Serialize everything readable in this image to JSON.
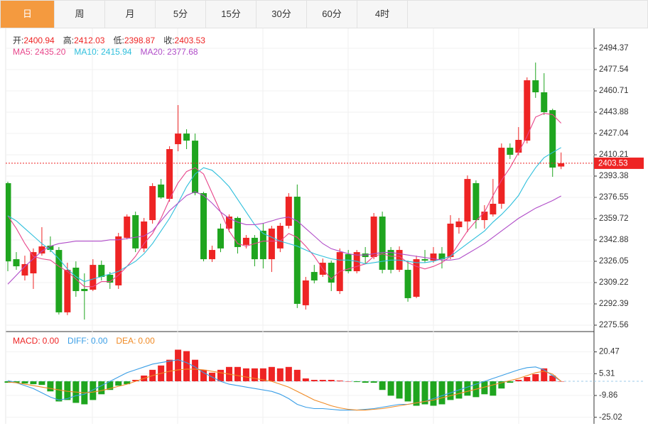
{
  "tabs": [
    "日",
    "周",
    "月",
    "5分",
    "15分",
    "30分",
    "60分",
    "4时"
  ],
  "chart_data": [
    {
      "type": "candlestick",
      "legend": [
        {
          "label": "开:",
          "value": "2400.94"
        },
        {
          "label": "高:",
          "value": "2412.03"
        },
        {
          "label": "低:",
          "value": "2398.87"
        },
        {
          "label": "收:",
          "value": "2403.53"
        }
      ],
      "up_color": "#ee2424",
      "down_color": "#1fa51f",
      "open": [
        2387.8,
        2327.7,
        2314.8,
        2316.5,
        2332.2,
        2338.4,
        2335.0,
        2285.7,
        2321.0,
        2304.2,
        2303.6,
        2323.2,
        2315.4,
        2307.0,
        2344.6,
        2362.5,
        2336.2,
        2358.6,
        2386.7,
        2375.4,
        2418.6,
        2427.0,
        2421.4,
        2379.9,
        2327.7,
        2351.9,
        2351.9,
        2360.3,
        2339.0,
        2344.6,
        2350.2,
        2327.7,
        2336.2,
        2354.1,
        2377.1,
        2291.3,
        2317.6,
        2315.4,
        2324.9,
        2302.5,
        2331.7,
        2318.2,
        2332.2,
        2329.4,
        2361.4,
        2335.0,
        2319.3,
        2319.3,
        2298.0,
        2327.7,
        2326.6,
        2332.2,
        2329.4,
        2353.0,
        2357.5,
        2387.8,
        2358.6,
        2363.1,
        2371.5,
        2415.8,
        2411.9,
        2421.4,
        2469.1,
        2459.6,
        2445.5,
        2400.94
      ],
      "close": [
        2326.0,
        2322.1,
        2323.8,
        2333.3,
        2337.8,
        2335.0,
        2285.7,
        2319.3,
        2302.5,
        2302.5,
        2323.2,
        2313.7,
        2309.2,
        2345.7,
        2361.4,
        2336.2,
        2357.5,
        2385.5,
        2376.5,
        2414.7,
        2427.0,
        2421.4,
        2379.9,
        2327.7,
        2335.0,
        2336.2,
        2361.4,
        2337.3,
        2344.6,
        2327.7,
        2327.7,
        2351.9,
        2354.1,
        2377.1,
        2292.4,
        2310.9,
        2310.9,
        2324.9,
        2309.2,
        2333.3,
        2318.2,
        2333.3,
        2329.4,
        2361.4,
        2319.3,
        2319.3,
        2335.0,
        2296.9,
        2327.7,
        2326.6,
        2332.2,
        2327.7,
        2355.8,
        2357.5,
        2391.1,
        2358.6,
        2365.3,
        2371.5,
        2415.8,
        2410.2,
        2422.0,
        2469.1,
        2459.6,
        2443.9,
        2400.1,
        2403.53
      ],
      "high": [
        2389.0,
        2333.3,
        2330.5,
        2336.2,
        2353.0,
        2345.7,
        2337.3,
        2324.9,
        2326.0,
        2316.5,
        2327.7,
        2326.6,
        2317.6,
        2348.5,
        2363.1,
        2365.3,
        2360.3,
        2387.8,
        2391.1,
        2417.0,
        2449.5,
        2430.4,
        2427.0,
        2381.0,
        2338.4,
        2355.8,
        2363.1,
        2361.4,
        2346.8,
        2346.8,
        2355.8,
        2354.1,
        2356.4,
        2379.9,
        2386.7,
        2313.7,
        2323.2,
        2328.2,
        2326.6,
        2336.2,
        2335.0,
        2335.0,
        2337.3,
        2364.2,
        2365.3,
        2337.3,
        2337.8,
        2326.6,
        2330.5,
        2335.0,
        2337.3,
        2337.3,
        2362.5,
        2360.3,
        2393.9,
        2390.0,
        2370.4,
        2391.1,
        2419.2,
        2419.2,
        2432.1,
        2471.4,
        2483.1,
        2474.7,
        2446.6,
        2412.03
      ],
      "low": [
        2318.2,
        2319.3,
        2310.9,
        2304.2,
        2330.5,
        2333.3,
        2284.0,
        2283.5,
        2298.0,
        2280.0,
        2302.5,
        2310.9,
        2304.2,
        2304.2,
        2343.4,
        2333.3,
        2333.3,
        2355.8,
        2375.4,
        2373.2,
        2413.0,
        2414.7,
        2378.2,
        2326.0,
        2325.5,
        2333.3,
        2349.1,
        2332.2,
        2336.2,
        2322.1,
        2320.4,
        2317.6,
        2333.3,
        2351.9,
        2289.1,
        2287.9,
        2308.6,
        2313.7,
        2302.5,
        2300.2,
        2316.5,
        2316.5,
        2323.8,
        2327.7,
        2316.5,
        2316.5,
        2317.6,
        2294.1,
        2296.9,
        2324.9,
        2324.9,
        2320.4,
        2327.7,
        2347.9,
        2349.1,
        2351.9,
        2351.9,
        2361.4,
        2367.6,
        2406.9,
        2409.7,
        2419.2,
        2455.2,
        2441.7,
        2392.8,
        2398.87
      ],
      "series": [
        {
          "name": "MA5:",
          "value_label": "2435.20",
          "color": "#e8468b",
          "values": [
            2362,
            2352,
            2340,
            2330,
            2328,
            2327,
            2322,
            2318,
            2312,
            2306,
            2306,
            2310,
            2310,
            2315,
            2322,
            2330,
            2340,
            2348,
            2360,
            2375,
            2388,
            2397,
            2400,
            2395,
            2380,
            2365,
            2350,
            2340,
            2338,
            2340,
            2342,
            2342,
            2342,
            2348,
            2345,
            2338,
            2330,
            2320,
            2312,
            2318,
            2320,
            2322,
            2324,
            2330,
            2332,
            2330,
            2330,
            2325,
            2322,
            2320,
            2322,
            2325,
            2330,
            2340,
            2350,
            2358,
            2365,
            2378,
            2390,
            2400,
            2412,
            2425,
            2440,
            2443,
            2442,
            2435.2
          ]
        },
        {
          "name": "MA10:",
          "value_label": "2415.94",
          "color": "#2ebfdc",
          "values": [
            2362,
            2358,
            2352,
            2346,
            2340,
            2335,
            2328,
            2320,
            2314,
            2310,
            2312,
            2314,
            2316,
            2318,
            2322,
            2326,
            2332,
            2340,
            2350,
            2360,
            2372,
            2385,
            2395,
            2400,
            2398,
            2392,
            2385,
            2375,
            2365,
            2355,
            2348,
            2345,
            2342,
            2340,
            2338,
            2335,
            2332,
            2330,
            2328,
            2327,
            2327,
            2326,
            2324,
            2325,
            2326,
            2327,
            2327,
            2326,
            2325,
            2325,
            2326,
            2328,
            2330,
            2335,
            2340,
            2345,
            2350,
            2357,
            2363,
            2370,
            2378,
            2390,
            2400,
            2408,
            2412,
            2415.94
          ]
        },
        {
          "name": "MA20:",
          "value_label": "2377.68",
          "color": "#b04cc8",
          "values": [
            2308,
            2315,
            2322,
            2328,
            2334,
            2338,
            2340,
            2341,
            2342,
            2342,
            2342,
            2342,
            2343,
            2343,
            2344,
            2345,
            2346,
            2350,
            2358,
            2366,
            2372,
            2378,
            2381,
            2378,
            2372,
            2365,
            2360,
            2357,
            2355,
            2355,
            2356,
            2358,
            2360,
            2361,
            2358,
            2352,
            2346,
            2340,
            2336,
            2334,
            2332,
            2331,
            2331,
            2332,
            2333,
            2333,
            2332,
            2331,
            2330,
            2329,
            2328,
            2327,
            2327,
            2328,
            2332,
            2336,
            2340,
            2345,
            2350,
            2355,
            2360,
            2364,
            2368,
            2371,
            2374,
            2377.68
          ]
        }
      ],
      "last_price": 2403.53,
      "ylim": [
        2270.5,
        2510.1
      ],
      "yticks": [
        2494.37,
        2477.54,
        2460.71,
        2443.88,
        2427.04,
        2410.21,
        2393.38,
        2376.55,
        2359.72,
        2342.88,
        2326.05,
        2309.22,
        2292.39,
        2275.56
      ]
    },
    {
      "type": "macd",
      "series": [
        {
          "name": "MACD:",
          "value_label": "0.00",
          "color": "#ee2424",
          "negative_color": "#1fa51f",
          "values": [
            -1,
            -1,
            -1.5,
            -2,
            -2.5,
            -7,
            -14,
            -13,
            -15,
            -16,
            -13,
            -9,
            -6,
            -3,
            -2,
            1,
            4,
            8,
            11,
            15,
            22,
            21,
            15,
            8,
            6,
            8,
            10,
            10,
            9,
            9,
            9,
            10,
            9,
            10,
            8,
            2,
            1,
            1,
            1,
            0.5,
            0,
            -0.5,
            -1,
            -1,
            -6,
            -10,
            -12,
            -14,
            -17,
            -16,
            -17,
            -16,
            -13,
            -12,
            -10,
            -11,
            -9,
            -10,
            -5,
            -1,
            1,
            3,
            5,
            9,
            4,
            0
          ]
        },
        {
          "name": "DIFF:",
          "value_label": "0.00",
          "color": "#3a9ee6",
          "values": [
            0.5,
            -1,
            -3,
            -5,
            -8,
            -11,
            -13,
            -12,
            -10,
            -9,
            -6,
            -3,
            0,
            3,
            6,
            8,
            10,
            12,
            13,
            14,
            15,
            13,
            10,
            6,
            3,
            0,
            -2,
            -3,
            -4,
            -5,
            -6,
            -7,
            -9,
            -12,
            -16,
            -18,
            -19,
            -19,
            -19.5,
            -20,
            -20,
            -20,
            -19.5,
            -19,
            -18,
            -17,
            -16,
            -16,
            -15,
            -14,
            -12,
            -10,
            -8,
            -6,
            -4,
            -2,
            0,
            2,
            4,
            6,
            8,
            9.5,
            10,
            8,
            4,
            0
          ]
        },
        {
          "name": "DEA:",
          "value_label": "0.00",
          "color": "#f08a24",
          "values": [
            -0.5,
            -1,
            -2,
            -3,
            -4,
            -5,
            -6,
            -7,
            -7.5,
            -8,
            -7.5,
            -6.5,
            -5,
            -3.5,
            -2,
            0,
            2,
            4,
            5.5,
            7,
            8,
            8.5,
            8.5,
            8,
            7,
            6,
            5,
            4,
            3,
            2,
            1,
            0,
            -2,
            -4,
            -7,
            -10,
            -13,
            -15,
            -17,
            -18.5,
            -19.5,
            -20,
            -20,
            -19.5,
            -19,
            -18,
            -17,
            -16,
            -15,
            -14,
            -13,
            -11.5,
            -10,
            -8.5,
            -7,
            -5.5,
            -4,
            -2.5,
            -1,
            0.5,
            2,
            4,
            6,
            7,
            5,
            0
          ]
        }
      ],
      "ylim": [
        -29.6,
        34.6
      ],
      "yticks": [
        20.47,
        5.31,
        -9.86,
        -25.02
      ]
    }
  ]
}
